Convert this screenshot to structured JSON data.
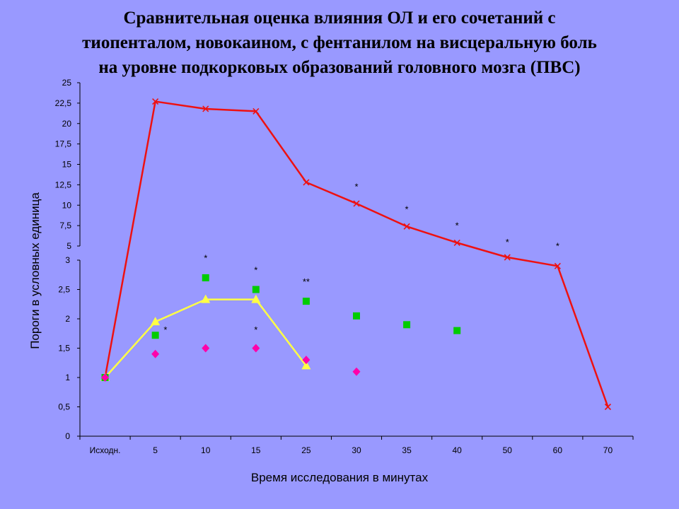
{
  "chart_data": {
    "type": "line",
    "title_lines": [
      "Сравнительная оценка влияния ОЛ и его сочетаний с",
      "тиопенталом, новокаином, с фентанилом на висцеральную боль",
      "на уровне подкорковых образований головного мозга (ПВС)"
    ],
    "ylabel": "Пороги в условных единица",
    "xlabel": "Время исследования в минутах",
    "categories": [
      "Исходн.",
      "5",
      "10",
      "15",
      "25",
      "30",
      "35",
      "40",
      "50",
      "60",
      "70"
    ],
    "y_axis_lower": {
      "range": [
        0,
        3
      ],
      "ticks": [
        "0",
        "0,5",
        "1",
        "1,5",
        "2",
        "2,5",
        "3"
      ]
    },
    "y_axis_upper": {
      "range": [
        5,
        25
      ],
      "ticks": [
        "5",
        "7,5",
        "10",
        "12,5",
        "15",
        "17,5",
        "20",
        "22,5",
        "25"
      ]
    },
    "series": [
      {
        "color": "#ee1111",
        "marker": "x",
        "line": true,
        "values": [
          1.0,
          22.7,
          21.8,
          21.5,
          12.8,
          10.2,
          7.4,
          5.4,
          3.4,
          2.9,
          0.5
        ]
      },
      {
        "color": "#ffff44",
        "marker": "triangle",
        "line": true,
        "values": [
          1.0,
          1.95,
          2.33,
          2.33,
          1.2,
          null,
          null,
          null,
          null,
          null,
          null
        ]
      },
      {
        "color": "#00cc00",
        "marker": "square",
        "line": false,
        "values": [
          1.0,
          1.72,
          2.7,
          2.5,
          2.3,
          2.05,
          1.9,
          1.8,
          null,
          null,
          null
        ]
      },
      {
        "color": "#ff00aa",
        "marker": "diamond",
        "line": false,
        "values": [
          1.0,
          1.4,
          1.5,
          1.5,
          1.3,
          1.1,
          null,
          null,
          null,
          null,
          null
        ]
      }
    ],
    "annotations": [
      {
        "text": "*",
        "x_index": 5,
        "axis": "upper",
        "y": 11.9
      },
      {
        "text": "*",
        "x_index": 6,
        "axis": "upper",
        "y": 9.1
      },
      {
        "text": "*",
        "x_index": 7,
        "axis": "upper",
        "y": 7.1
      },
      {
        "text": "*",
        "x_index": 8,
        "axis": "upper",
        "y": 5.1
      },
      {
        "text": "*",
        "x_index": 9,
        "axis": "upper",
        "y": 4.6
      },
      {
        "text": "*",
        "x_index": 2,
        "axis": "lower",
        "y": 2.98
      },
      {
        "text": "*",
        "x_index": 3,
        "axis": "lower",
        "y": 2.78
      },
      {
        "text": "**",
        "x_index": 4,
        "axis": "lower",
        "y": 2.58
      },
      {
        "text": "*",
        "x_index": 1.2,
        "axis": "lower",
        "y": 1.76
      },
      {
        "text": "*",
        "x_index": 3,
        "axis": "lower",
        "y": 1.76
      }
    ],
    "grid": false,
    "legend": "none"
  }
}
